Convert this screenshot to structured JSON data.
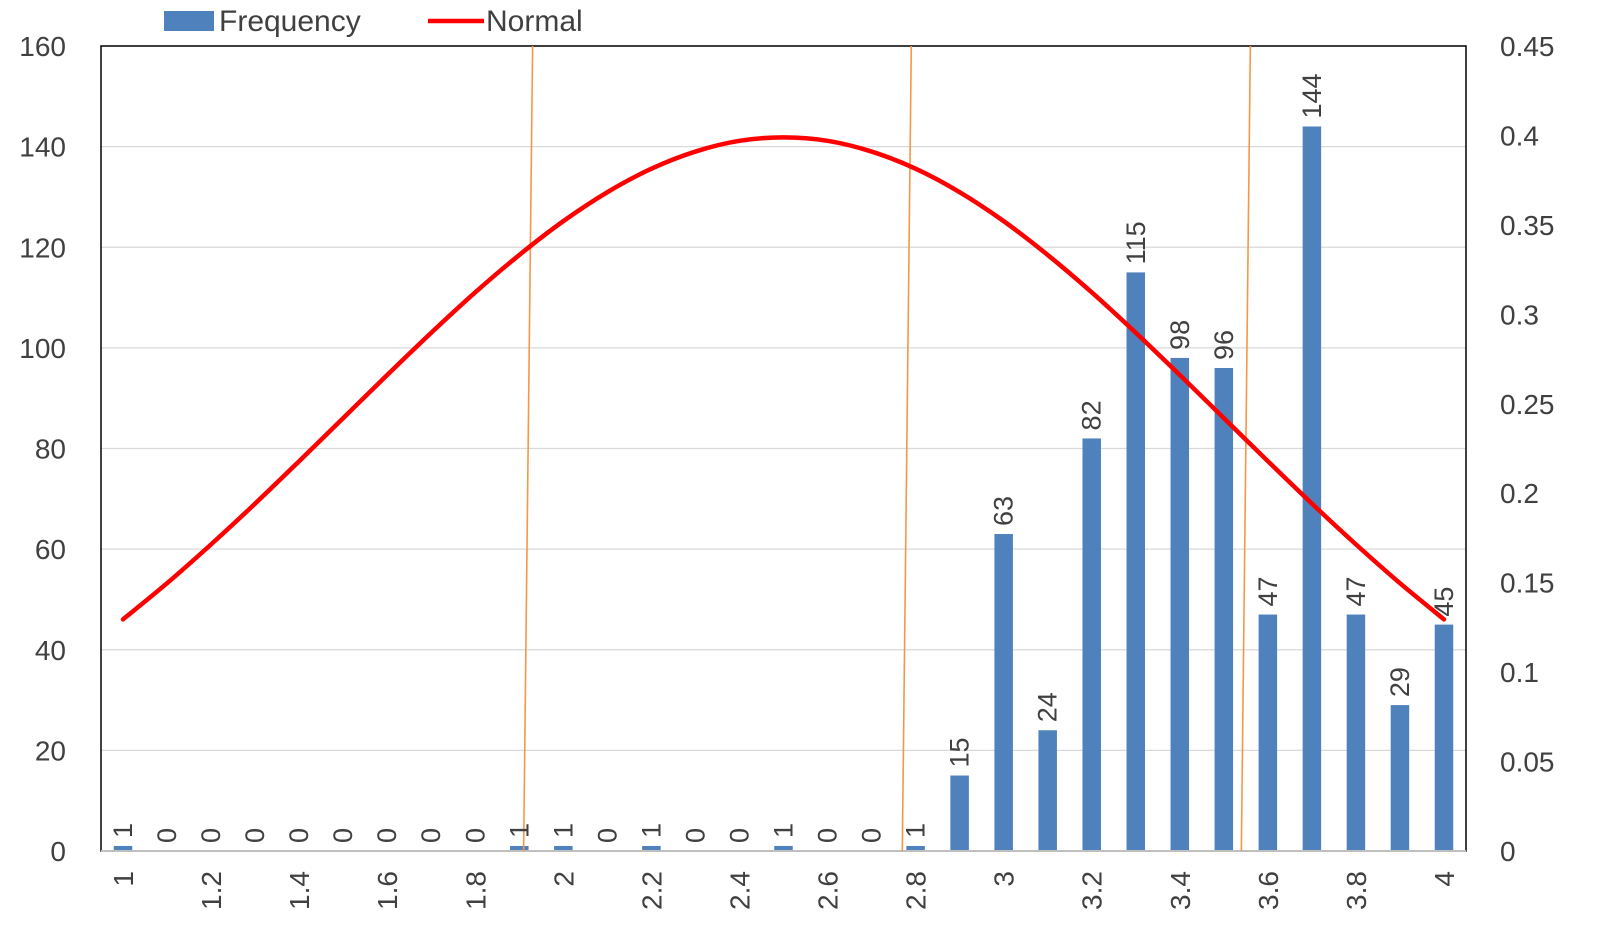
{
  "chart_data": {
    "type": "bar",
    "categories": [
      "1",
      "1.1",
      "1.2",
      "1.3",
      "1.4",
      "1.5",
      "1.6",
      "1.7",
      "1.8",
      "1.9",
      "2",
      "2.1",
      "2.2",
      "2.3",
      "2.4",
      "2.5",
      "2.6",
      "2.7",
      "2.8",
      "2.9",
      "3",
      "3.1",
      "3.2",
      "3.3",
      "3.4",
      "3.5",
      "3.6",
      "3.7",
      "3.8",
      "3.9",
      "4"
    ],
    "x_tick_labels": [
      "1",
      "1.2",
      "1.4",
      "1.6",
      "1.8",
      "2",
      "2.2",
      "2.4",
      "2.6",
      "2.8",
      "3",
      "3.2",
      "3.4",
      "3.6",
      "3.8",
      "4"
    ],
    "series": [
      {
        "name": "Frequency",
        "type": "bar",
        "axis": "left",
        "color": "#4f81bd",
        "values": [
          1,
          0,
          0,
          0,
          0,
          0,
          0,
          0,
          0,
          1,
          1,
          0,
          1,
          0,
          0,
          1,
          0,
          0,
          1,
          15,
          63,
          24,
          82,
          115,
          98,
          96,
          47,
          144,
          47,
          29,
          45
        ]
      },
      {
        "name": "Normal",
        "type": "line",
        "axis": "right",
        "color": "#ff0000",
        "values": [
          0.1295,
          0.1497,
          0.1714,
          0.1942,
          0.2179,
          0.242,
          0.2661,
          0.2897,
          0.3123,
          0.3332,
          0.3521,
          0.3683,
          0.3814,
          0.391,
          0.397,
          0.3989,
          0.397,
          0.391,
          0.3814,
          0.3683,
          0.3521,
          0.3332,
          0.3123,
          0.2897,
          0.2661,
          0.242,
          0.2179,
          0.1942,
          0.1714,
          0.1497,
          0.1295
        ]
      }
    ],
    "y_left": {
      "ylim": [
        0,
        160
      ],
      "ticks": [
        "0",
        "20",
        "40",
        "60",
        "80",
        "100",
        "120",
        "140",
        "160"
      ]
    },
    "y_right": {
      "ylim": [
        0,
        0.45
      ],
      "ticks": [
        "0",
        "0.05",
        "0.1",
        "0.15",
        "0.2",
        "0.25",
        "0.3",
        "0.35",
        "0.4",
        "0.45"
      ]
    },
    "reference_lines": {
      "color": "#f79646",
      "x": [
        1.92,
        2.78,
        3.55
      ]
    },
    "grid": true,
    "legend": {
      "position": "top-left",
      "entries": [
        "Frequency",
        "Normal"
      ]
    }
  }
}
